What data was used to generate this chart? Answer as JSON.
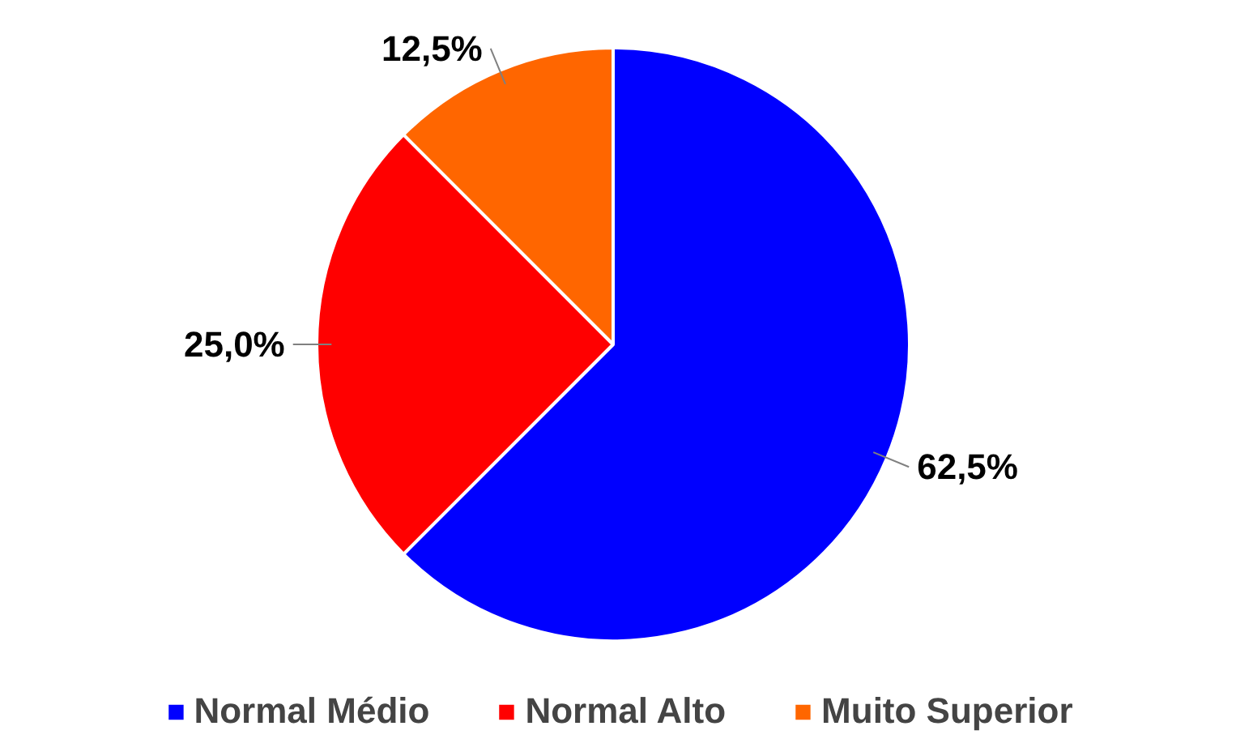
{
  "chart_data": {
    "type": "pie",
    "categories": [
      "Normal Médio",
      "Normal Alto",
      "Muito Superior"
    ],
    "values": [
      62.5,
      25.0,
      12.5
    ],
    "colors": [
      "#0000ff",
      "#ff0000",
      "#ff6600"
    ],
    "value_labels": [
      "62,5%",
      "25,0%",
      "12,5%"
    ],
    "legend": "bottom"
  }
}
